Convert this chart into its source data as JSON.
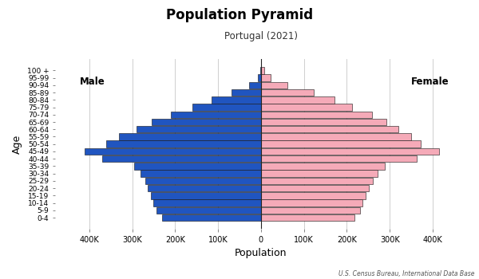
{
  "title": "Population Pyramid",
  "subtitle": "Portugal (2021)",
  "source": "U.S. Census Bureau, International Data Base",
  "xlabel": "Population",
  "ylabel": "Age",
  "age_groups": [
    "0-4",
    "5-9",
    "10-14",
    "15-19",
    "20-24",
    "25-29",
    "30-34",
    "35-39",
    "40-44",
    "45-49",
    "50-54",
    "55-59",
    "60-64",
    "65-69",
    "70-74",
    "75-79",
    "80-84",
    "85-89",
    "90-94",
    "95-99",
    "100 +"
  ],
  "male": [
    230000,
    243000,
    250000,
    257000,
    264000,
    270000,
    280000,
    295000,
    370000,
    410000,
    360000,
    330000,
    290000,
    255000,
    210000,
    160000,
    115000,
    68000,
    28000,
    8000,
    2500
  ],
  "female": [
    218000,
    230000,
    237000,
    244000,
    252000,
    260000,
    272000,
    288000,
    362000,
    415000,
    372000,
    350000,
    320000,
    292000,
    258000,
    212000,
    172000,
    122000,
    62000,
    23000,
    7000
  ],
  "male_color": "#2055c0",
  "female_color": "#f5aab8",
  "bar_edge_color": "#111111",
  "background_color": "#ffffff",
  "grid_color": "#c8c8c8",
  "male_label": "Male",
  "female_label": "Female",
  "xlim": 480000,
  "tick_step": 100000
}
